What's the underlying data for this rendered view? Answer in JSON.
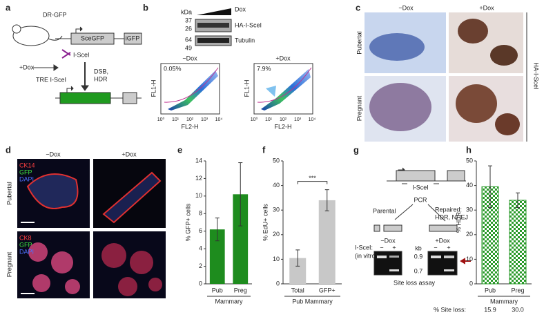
{
  "panel_labels": [
    "a",
    "b",
    "c",
    "d",
    "e",
    "f",
    "g",
    "h"
  ],
  "a": {
    "mouse": "DR-GFP",
    "gene1": "SceGFP",
    "gene2": "iGFP",
    "enzyme": "I-SceI",
    "dox": "+Dox",
    "transgene": "TRE I-SceI",
    "repair": [
      "DSB,",
      "HDR"
    ]
  },
  "b": {
    "kda": "kDa",
    "markers": [
      "37",
      "26",
      "64",
      "49"
    ],
    "dox": "Dox",
    "bands": [
      "HA-I-SceI",
      "Tubulin"
    ],
    "plots": [
      {
        "title": "−Dox",
        "pct": "0.05%"
      },
      {
        "title": "+Dox",
        "pct": "7.9%"
      }
    ],
    "y_label": "FL1-H",
    "x_label": "FL2-H",
    "ticks": [
      "10⁰",
      "10¹",
      "10²",
      "10³",
      "10⁴"
    ]
  },
  "c": {
    "columns": [
      "−Dox",
      "+Dox"
    ],
    "rows": [
      "Pubertal",
      "Pregnant"
    ],
    "stain": "HA-I-SceI"
  },
  "d": {
    "columns": [
      "−Dox",
      "+Dox"
    ],
    "rows": [
      "Pubertal",
      "Pregnant"
    ],
    "channels": [
      [
        "CK14",
        "GFP",
        "DAPI"
      ],
      [
        "CK8",
        "GFP",
        "DAPI"
      ]
    ]
  },
  "g": {
    "site": "I-SceI",
    "pcr": "PCR",
    "parental": "Parental",
    "repaired": [
      "Repaired:",
      "HDR, NHEJ"
    ],
    "lanes": [
      "−Dox",
      "+Dox"
    ],
    "enzyme": [
      "I-SceI:",
      "(in vitro)"
    ],
    "signs": [
      "−",
      "+",
      "−",
      "+"
    ],
    "kb": "kb",
    "sizes": [
      "0.9",
      "0.7"
    ],
    "caption": "Site loss assay"
  },
  "chart_data": [
    {
      "type": "bar",
      "y_label": "% GFP+ cells",
      "categories": [
        "Pub",
        "Preg"
      ],
      "group_label": "Mammary",
      "values": [
        6.2,
        10.2
      ],
      "errors": [
        1.3,
        3.6
      ],
      "color": "#1e8c1e",
      "ylim": [
        0,
        14
      ],
      "yticks": [
        0,
        2,
        4,
        6,
        8,
        10,
        12,
        14
      ]
    },
    {
      "type": "bar",
      "y_label": "% EdU+ cells",
      "categories": [
        "Total",
        "GFP+"
      ],
      "group_label": "Pub Mammary",
      "values": [
        10.5,
        34
      ],
      "errors": [
        3.3,
        4.3
      ],
      "color": "#c8c8c8",
      "annotation": "***",
      "ylim": [
        0,
        50
      ],
      "yticks": [
        0,
        10,
        20,
        30,
        40,
        50
      ]
    },
    {
      "type": "bar",
      "pattern": "checker",
      "y_label": "% HDR",
      "categories": [
        "Pub",
        "Preg"
      ],
      "group_label": "Mammary",
      "values": [
        39.5,
        34
      ],
      "errors": [
        8.5,
        3
      ],
      "color": "#2a9a2a",
      "ylim": [
        0,
        50
      ],
      "yticks": [
        0,
        10,
        20,
        30,
        40,
        50
      ],
      "site_loss_label": "% Site loss:",
      "site_loss": [
        "15.9",
        "30.0"
      ]
    }
  ]
}
